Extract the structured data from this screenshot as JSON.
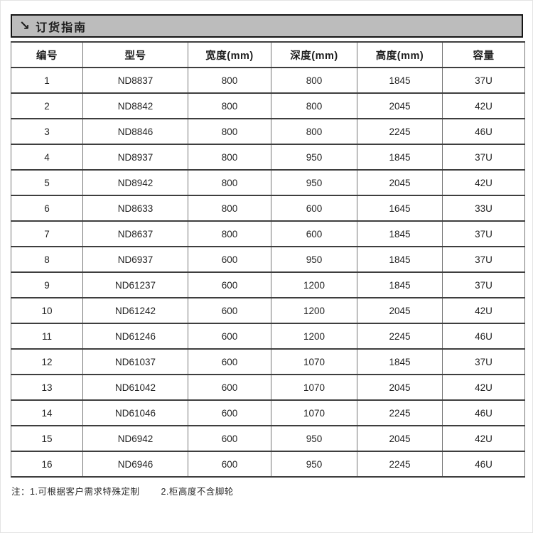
{
  "header": {
    "arrow_icon": "↘",
    "title": "订货指南"
  },
  "table": {
    "columns": [
      "编号",
      "型号",
      "宽度(mm)",
      "深度(mm)",
      "高度(mm)",
      "容量"
    ],
    "rows": [
      [
        "1",
        "ND8837",
        "800",
        "800",
        "1845",
        "37U"
      ],
      [
        "2",
        "ND8842",
        "800",
        "800",
        "2045",
        "42U"
      ],
      [
        "3",
        "ND8846",
        "800",
        "800",
        "2245",
        "46U"
      ],
      [
        "4",
        "ND8937",
        "800",
        "950",
        "1845",
        "37U"
      ],
      [
        "5",
        "ND8942",
        "800",
        "950",
        "2045",
        "42U"
      ],
      [
        "6",
        "ND8633",
        "800",
        "600",
        "1645",
        "33U"
      ],
      [
        "7",
        "ND8637",
        "800",
        "600",
        "1845",
        "37U"
      ],
      [
        "8",
        "ND6937",
        "600",
        "950",
        "1845",
        "37U"
      ],
      [
        "9",
        "ND61237",
        "600",
        "1200",
        "1845",
        "37U"
      ],
      [
        "10",
        "ND61242",
        "600",
        "1200",
        "2045",
        "42U"
      ],
      [
        "11",
        "ND61246",
        "600",
        "1200",
        "2245",
        "46U"
      ],
      [
        "12",
        "ND61037",
        "600",
        "1070",
        "1845",
        "37U"
      ],
      [
        "13",
        "ND61042",
        "600",
        "1070",
        "2045",
        "42U"
      ],
      [
        "14",
        "ND61046",
        "600",
        "1070",
        "2245",
        "46U"
      ],
      [
        "15",
        "ND6942",
        "600",
        "950",
        "2045",
        "42U"
      ],
      [
        "16",
        "ND6946",
        "600",
        "950",
        "2245",
        "46U"
      ]
    ]
  },
  "footnote": {
    "prefix": "注：",
    "note1": "1.可根据客户需求特殊定制",
    "note2": "2.柜高度不含脚轮"
  },
  "colors": {
    "title_bar_bg": "#bcbcbc",
    "title_bar_border": "#151515",
    "row_border_dark": "#3e3e3e",
    "column_border_gray": "#757575",
    "text": "#1f1f1f"
  }
}
